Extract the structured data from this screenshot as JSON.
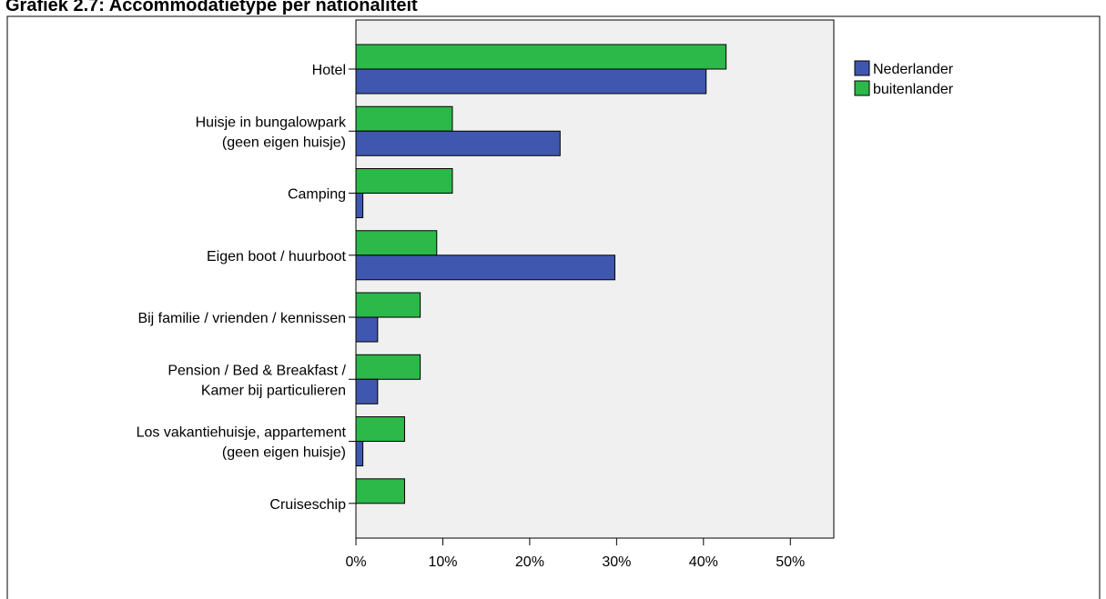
{
  "chart_data": {
    "type": "bar",
    "orientation": "horizontal",
    "title": "Grafiek 2.7: Accommodatietype per nationaliteit",
    "xlabel": "",
    "ylabel": "",
    "xlim": [
      0,
      55
    ],
    "x_ticks": [
      "0%",
      "10%",
      "20%",
      "30%",
      "40%",
      "50%"
    ],
    "x_tick_values": [
      0,
      10,
      20,
      30,
      40,
      50
    ],
    "grid": false,
    "legend_position": "top-right",
    "categories": [
      [
        "Hotel"
      ],
      [
        "Huisje in bungalowpark",
        "(geen eigen huisje)"
      ],
      [
        "Camping"
      ],
      [
        "Eigen boot / huurboot"
      ],
      [
        "Bij familie / vrienden / kennissen"
      ],
      [
        "Pension / Bed & Breakfast /",
        "Kamer bij particulieren"
      ],
      [
        "Los vakantiehuisje, appartement",
        "(geen eigen huisje)"
      ],
      [
        "Cruiseschip"
      ]
    ],
    "series": [
      {
        "name": "Nederlander",
        "color": "#3F57AE",
        "values": [
          40.3,
          23.5,
          0.8,
          29.8,
          2.5,
          2.5,
          0.8,
          0.0
        ]
      },
      {
        "name": "buitenlander",
        "color": "#2DB84A",
        "values": [
          42.6,
          11.1,
          11.1,
          9.3,
          7.4,
          7.4,
          5.6,
          5.6
        ]
      }
    ],
    "plot_background": "#F0F0F0"
  }
}
